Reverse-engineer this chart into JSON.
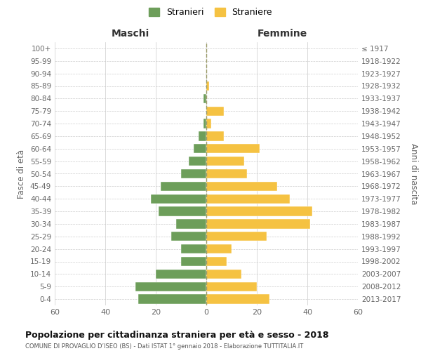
{
  "age_groups": [
    "100+",
    "95-99",
    "90-94",
    "85-89",
    "80-84",
    "75-79",
    "70-74",
    "65-69",
    "60-64",
    "55-59",
    "50-54",
    "45-49",
    "40-44",
    "35-39",
    "30-34",
    "25-29",
    "20-24",
    "15-19",
    "10-14",
    "5-9",
    "0-4"
  ],
  "birth_years": [
    "≤ 1917",
    "1918-1922",
    "1923-1927",
    "1928-1932",
    "1933-1937",
    "1938-1942",
    "1943-1947",
    "1948-1952",
    "1953-1957",
    "1958-1962",
    "1963-1967",
    "1968-1972",
    "1973-1977",
    "1978-1982",
    "1983-1987",
    "1988-1992",
    "1993-1997",
    "1998-2002",
    "2003-2007",
    "2008-2012",
    "2013-2017"
  ],
  "maschi": [
    0,
    0,
    0,
    0,
    1,
    0,
    1,
    3,
    5,
    7,
    10,
    18,
    22,
    19,
    12,
    14,
    10,
    10,
    20,
    28,
    27
  ],
  "femmine": [
    0,
    0,
    0,
    1,
    0,
    7,
    2,
    7,
    21,
    15,
    16,
    28,
    33,
    42,
    41,
    24,
    10,
    8,
    14,
    20,
    25
  ],
  "maschi_color": "#6d9e5a",
  "femmine_color": "#f5c242",
  "background_color": "#ffffff",
  "grid_color": "#cccccc",
  "dashed_line_color": "#999966",
  "title": "Popolazione per cittadinanza straniera per età e sesso - 2018",
  "subtitle": "COMUNE DI PROVAGLIO D’ISEO (BS) - Dati ISTAT 1° gennaio 2018 - Elaborazione TUTTITALIA.IT",
  "ylabel_left": "Fasce di età",
  "ylabel_right": "Anni di nascita",
  "xlabel_left": "Maschi",
  "xlabel_right": "Femmine",
  "legend_maschi": "Stranieri",
  "legend_femmine": "Straniere",
  "xlim": 60
}
